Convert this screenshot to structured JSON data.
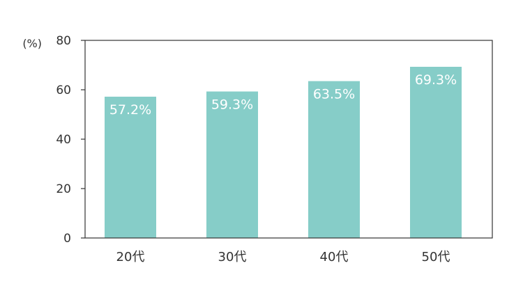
{
  "chart_data": {
    "type": "bar",
    "categories": [
      "20代",
      "30代",
      "40代",
      "50代"
    ],
    "values": [
      57.2,
      59.3,
      63.5,
      69.3
    ],
    "data_labels": [
      "57.2%",
      "59.3%",
      "63.5%",
      "69.3%"
    ],
    "y_unit_label": "(%)",
    "yticks": [
      0,
      20,
      40,
      60,
      80
    ],
    "ylim": [
      0,
      80
    ],
    "grid": false,
    "legend": "none",
    "bar_color": "#86cdc8"
  }
}
